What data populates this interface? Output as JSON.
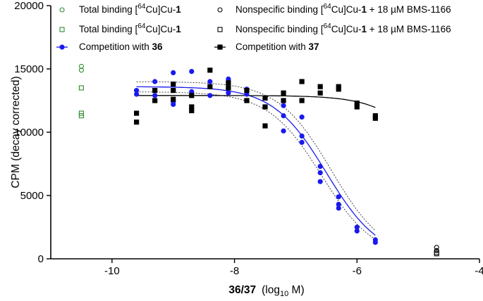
{
  "chart_data": {
    "type": "scatter",
    "title": "",
    "xlabel": {
      "bold": "36/37",
      "rest_pre": "(log",
      "sub": "10",
      "rest_post": " M)"
    },
    "ylabel": "CPM  (decay corrected)",
    "xlim": [
      -11,
      -4
    ],
    "ylim": [
      0,
      20000
    ],
    "x_ticks": [
      -10,
      -8,
      -6,
      -4
    ],
    "x_tick_labels": [
      "-10",
      "-8",
      "-6",
      "-4"
    ],
    "y_ticks": [
      0,
      5000,
      10000,
      15000,
      20000
    ],
    "y_tick_labels": [
      "0",
      "5000",
      "10000",
      "15000",
      "20000"
    ],
    "colors": {
      "green": "#2e8b2e",
      "blue": "#1a1aee",
      "black": "#000000",
      "ci": "#444444"
    },
    "legend": [
      {
        "marker": "circle-open-green",
        "pre": "Total binding [",
        "sup": "64",
        "mid": "Cu]Cu-",
        "bold": "1",
        "post": ""
      },
      {
        "marker": "circle-open-black",
        "pre": "Nonspecific binding [",
        "sup": "64",
        "mid": "Cu]Cu-",
        "bold": "1",
        "post": " + 18 µM  BMS-1166"
      },
      {
        "marker": "square-open-green",
        "pre": "Total binding [",
        "sup": "64",
        "mid": "Cu]Cu-",
        "bold": "1",
        "post": ""
      },
      {
        "marker": "square-open-black",
        "pre": "Nonspecific binding [",
        "sup": "64",
        "mid": "Cu]Cu-",
        "bold": "1",
        "post": " + 18 µM  BMS-1166"
      },
      {
        "marker": "circle-blue-line",
        "pre": "Competition with ",
        "sup": "",
        "mid": "",
        "bold": "36",
        "post": ""
      },
      {
        "marker": "square-black-line",
        "pre": "Competition with ",
        "sup": "",
        "mid": "",
        "bold": "37",
        "post": ""
      }
    ],
    "series": [
      {
        "name": "Total binding [64Cu]Cu-1 (circles)",
        "marker": "circle-open-green",
        "points": [
          [
            -10.5,
            15200
          ],
          [
            -10.5,
            14900
          ]
        ]
      },
      {
        "name": "Total binding [64Cu]Cu-1 (squares)",
        "marker": "square-open-green",
        "points": [
          [
            -10.5,
            13500
          ],
          [
            -10.5,
            11500
          ],
          [
            -10.5,
            11300
          ]
        ]
      },
      {
        "name": "Nonspecific binding (circles)",
        "marker": "circle-open-black",
        "points": [
          [
            -4.7,
            900
          ],
          [
            -4.7,
            650
          ]
        ]
      },
      {
        "name": "Nonspecific binding (squares)",
        "marker": "square-open-black",
        "points": [
          [
            -4.7,
            500
          ],
          [
            -4.7,
            400
          ]
        ]
      },
      {
        "name": "Competition with 36",
        "marker": "circle-blue",
        "points": [
          [
            -9.6,
            13000
          ],
          [
            -9.6,
            13300
          ],
          [
            -9.3,
            14000
          ],
          [
            -9.3,
            12900
          ],
          [
            -9.0,
            14700
          ],
          [
            -9.0,
            12400
          ],
          [
            -9.0,
            12200
          ],
          [
            -8.7,
            14800
          ],
          [
            -8.7,
            13200
          ],
          [
            -8.4,
            14000
          ],
          [
            -8.4,
            12900
          ],
          [
            -8.1,
            14200
          ],
          [
            -8.1,
            13100
          ],
          [
            -7.8,
            13400
          ],
          [
            -7.8,
            13000
          ],
          [
            -7.5,
            12700
          ],
          [
            -7.5,
            12000
          ],
          [
            -7.2,
            12100
          ],
          [
            -7.2,
            11300
          ],
          [
            -7.2,
            10100
          ],
          [
            -6.9,
            11200
          ],
          [
            -6.9,
            9700
          ],
          [
            -6.9,
            9200
          ],
          [
            -6.6,
            7300
          ],
          [
            -6.6,
            6800
          ],
          [
            -6.6,
            6100
          ],
          [
            -6.3,
            4900
          ],
          [
            -6.3,
            4300
          ],
          [
            -6.3,
            4000
          ],
          [
            -6.0,
            2500
          ],
          [
            -6.0,
            2200
          ],
          [
            -5.7,
            1500
          ],
          [
            -5.7,
            1300
          ]
        ]
      },
      {
        "name": "Competition with 37",
        "marker": "square-black",
        "points": [
          [
            -9.6,
            11500
          ],
          [
            -9.6,
            10800
          ],
          [
            -9.3,
            13300
          ],
          [
            -9.3,
            12500
          ],
          [
            -9.0,
            13800
          ],
          [
            -9.0,
            13300
          ],
          [
            -9.0,
            12600
          ],
          [
            -8.7,
            12900
          ],
          [
            -8.7,
            12000
          ],
          [
            -8.7,
            11700
          ],
          [
            -8.4,
            14900
          ],
          [
            -8.4,
            13600
          ],
          [
            -8.1,
            13900
          ],
          [
            -8.1,
            13500
          ],
          [
            -7.8,
            13300
          ],
          [
            -7.8,
            12500
          ],
          [
            -7.5,
            12700
          ],
          [
            -7.5,
            12000
          ],
          [
            -7.5,
            10500
          ],
          [
            -7.2,
            13100
          ],
          [
            -7.2,
            12500
          ],
          [
            -6.9,
            14000
          ],
          [
            -6.9,
            12500
          ],
          [
            -6.6,
            13600
          ],
          [
            -6.6,
            13100
          ],
          [
            -6.3,
            13600
          ],
          [
            -6.3,
            13400
          ],
          [
            -6.0,
            12300
          ],
          [
            -6.0,
            12000
          ],
          [
            -5.7,
            11300
          ],
          [
            -5.7,
            11100
          ]
        ]
      }
    ],
    "fits": [
      {
        "name": "Competition with 36 fit",
        "color": "blue",
        "top": 13600,
        "bottom": 0,
        "logIC50": -6.5,
        "hill": -1.0,
        "x_range": [
          -9.6,
          -5.7
        ]
      },
      {
        "name": "Competition with 37 fit",
        "color": "black",
        "top": 12900,
        "bottom": 0,
        "logIC50": -4.6,
        "hill": -1.0,
        "x_range": [
          -9.6,
          -5.7
        ]
      }
    ],
    "ci_bands": [
      {
        "name": "Competition with 36 lower 95% CI",
        "top": 13200,
        "bottom": 0,
        "logIC50": -6.58,
        "hill": -1.0,
        "x_range": [
          -9.6,
          -5.7
        ]
      },
      {
        "name": "Competition with 36 upper 95% CI",
        "top": 14000,
        "bottom": 0,
        "logIC50": -6.42,
        "hill": -1.0,
        "x_range": [
          -9.6,
          -5.7
        ]
      }
    ]
  }
}
